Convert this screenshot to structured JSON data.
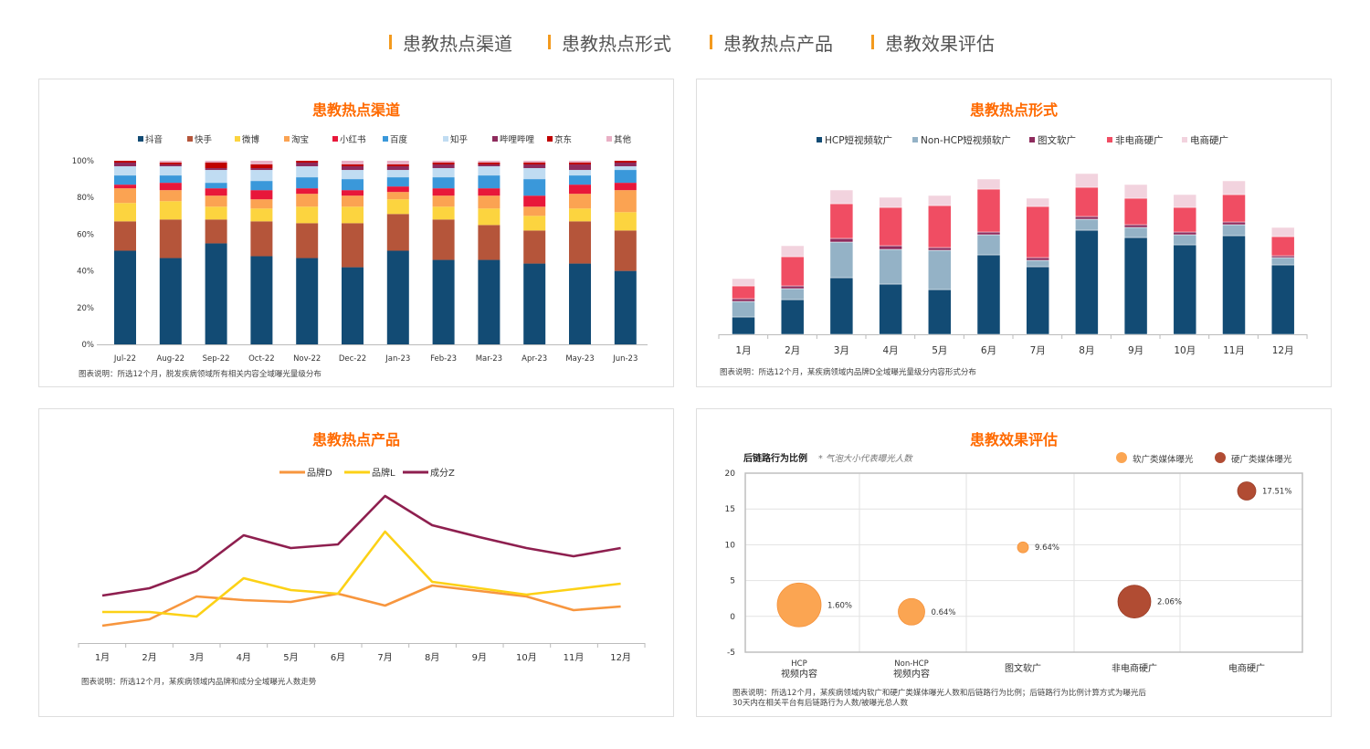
{
  "tabs": [
    {
      "label": "患教热点渠道"
    },
    {
      "label": "患教热点形式"
    },
    {
      "label": "患教热点产品"
    },
    {
      "label": "患教效果评估"
    }
  ],
  "colors": {
    "tab_marker": "#f39a1e",
    "title": "#ff6a00"
  },
  "chart_data": [
    {
      "type": "bar",
      "stacked": true,
      "title": "患教热点渠道",
      "categories": [
        "Jul-22",
        "Aug-22",
        "Sep-22",
        "Oct-22",
        "Nov-22",
        "Dec-22",
        "Jan-23",
        "Feb-23",
        "Mar-23",
        "Apr-23",
        "May-23",
        "Jun-23"
      ],
      "yticks": [
        "0%",
        "20%",
        "40%",
        "60%",
        "80%",
        "100%"
      ],
      "ylim": [
        0,
        100
      ],
      "series": [
        {
          "name": "抖音",
          "color": "#124b74",
          "values": [
            51,
            47,
            55,
            48,
            47,
            42,
            51,
            46,
            46,
            44,
            44,
            40
          ]
        },
        {
          "name": "快手",
          "color": "#b5553a",
          "values": [
            16,
            21,
            13,
            19,
            19,
            24,
            20,
            22,
            19,
            18,
            23,
            22
          ]
        },
        {
          "name": "微博",
          "color": "#fcd43f",
          "values": [
            10,
            10,
            7,
            7,
            9,
            9,
            8,
            7,
            9,
            8,
            7,
            10
          ]
        },
        {
          "name": "淘宝",
          "color": "#fba352",
          "values": [
            8,
            6,
            6,
            5,
            7,
            6,
            4,
            6,
            7,
            5,
            8,
            12
          ]
        },
        {
          "name": "小红书",
          "color": "#e8173a",
          "values": [
            2,
            4,
            4,
            5,
            3,
            3,
            3,
            4,
            4,
            6,
            5,
            4
          ]
        },
        {
          "name": "百度",
          "color": "#3a98da",
          "values": [
            5,
            4,
            3,
            5,
            6,
            6,
            5,
            6,
            7,
            9,
            5,
            7
          ]
        },
        {
          "name": "知乎",
          "color": "#c0dcf2",
          "values": [
            5,
            5,
            7,
            6,
            6,
            5,
            4,
            5,
            5,
            6,
            3,
            2
          ]
        },
        {
          "name": "哔哩哔哩",
          "color": "#8e2b5d",
          "values": [
            2,
            1,
            1,
            1,
            2,
            2,
            2,
            2,
            1,
            2,
            3,
            2
          ]
        },
        {
          "name": "京东",
          "color": "#c00000",
          "values": [
            1,
            1,
            3,
            2,
            1,
            1,
            1,
            1,
            1,
            1,
            1,
            1
          ]
        },
        {
          "name": "其他",
          "color": "#e9b0c5",
          "values": [
            0,
            1,
            1,
            2,
            0,
            2,
            2,
            1,
            1,
            1,
            1,
            0
          ]
        }
      ],
      "caption": "图表说明：所选12个月，脱发疾病领域所有相关内容全域曝光量级分布"
    },
    {
      "type": "bar",
      "stacked": true,
      "title": "患教热点形式",
      "categories": [
        "1月",
        "2月",
        "3月",
        "4月",
        "5月",
        "6月",
        "7月",
        "8月",
        "9月",
        "10月",
        "11月",
        "12月"
      ],
      "series": [
        {
          "name": "HCP短视频软广",
          "color": "#124b74",
          "values": [
            19,
            38,
            62,
            55,
            49,
            87,
            74,
            114,
            106,
            98,
            108,
            76
          ]
        },
        {
          "name": "Non-HCP短视频软广",
          "color": "#94b2c6",
          "values": [
            17,
            12,
            39,
            38,
            43,
            22,
            7,
            12,
            11,
            11,
            12,
            8
          ]
        },
        {
          "name": "图文软广",
          "color": "#8e2b5d",
          "values": [
            3,
            3,
            4,
            4,
            3,
            3,
            3,
            3,
            3,
            3,
            3,
            2
          ]
        },
        {
          "name": "非电商硬广",
          "color": "#f04d63",
          "values": [
            14,
            32,
            38,
            42,
            46,
            47,
            56,
            32,
            29,
            27,
            30,
            21
          ]
        },
        {
          "name": "电商硬广",
          "color": "#f2d3de",
          "values": [
            8,
            12,
            15,
            11,
            11,
            11,
            9,
            15,
            15,
            14,
            15,
            10
          ]
        }
      ],
      "caption": "图表说明：所选12个月，某疾病领域内品牌D全域曝光量级分内容形式分布"
    },
    {
      "type": "line",
      "title": "患教热点产品",
      "categories": [
        "1月",
        "2月",
        "3月",
        "4月",
        "5月",
        "6月",
        "7月",
        "8月",
        "9月",
        "10月",
        "11月",
        "12月"
      ],
      "series": [
        {
          "name": "品牌D",
          "color": "#f7963e",
          "values": [
            19,
            26,
            51,
            47,
            45,
            54,
            41,
            63,
            57,
            51,
            36,
            40
          ]
        },
        {
          "name": "品牌L",
          "color": "#fcd116",
          "values": [
            34,
            34,
            29,
            71,
            58,
            54,
            122,
            67,
            60,
            53,
            59,
            65
          ]
        },
        {
          "name": "成分Z",
          "color": "#8e1f4f",
          "values": [
            52,
            60,
            79,
            118,
            104,
            108,
            161,
            129,
            116,
            104,
            95,
            104
          ]
        }
      ],
      "caption": "图表说明：所选12个月，某疾病领域内品牌和成分全域曝光人数走势"
    },
    {
      "type": "scatter",
      "bubble": true,
      "title": "患教效果评估",
      "ylabel": "后链路行为比例",
      "note": "* 气泡大小代表曝光人数",
      "ylim": [
        -5,
        20
      ],
      "yticks": [
        "20",
        "15",
        "10",
        "5",
        "0",
        "-5"
      ],
      "categories": [
        {
          "line1": "HCP",
          "line2": "视频内容"
        },
        {
          "line1": "Non-HCP",
          "line2": "视频内容"
        },
        {
          "line1": "",
          "line2": "图文软广"
        },
        {
          "line1": "",
          "line2": "非电商硬广"
        },
        {
          "line1": "",
          "line2": "电商硬广"
        }
      ],
      "legend": [
        {
          "name": "软广类媒体曝光",
          "color": "#fba552"
        },
        {
          "name": "硬广类媒体曝光",
          "color": "#b14c33"
        }
      ],
      "points": [
        {
          "category": 0,
          "y": 1.6,
          "label": "1.60%",
          "size": 24,
          "group": 0
        },
        {
          "category": 1,
          "y": 0.64,
          "label": "0.64%",
          "size": 14.5,
          "group": 0
        },
        {
          "category": 2,
          "y": 9.64,
          "label": "9.64%",
          "size": 6,
          "group": 0
        },
        {
          "category": 3,
          "y": 2.06,
          "label": "2.06%",
          "size": 18,
          "group": 1
        },
        {
          "category": 4,
          "y": 17.51,
          "label": "17.51%",
          "size": 10,
          "group": 1
        }
      ],
      "caption": [
        "图表说明：所选12个月，某疾病领域内软广和硬广类媒体曝光人数和后链路行为比例；后链路行为比例计算方式为曝光后",
        "30天内在相关平台有后链路行为人数/被曝光总人数"
      ]
    }
  ]
}
